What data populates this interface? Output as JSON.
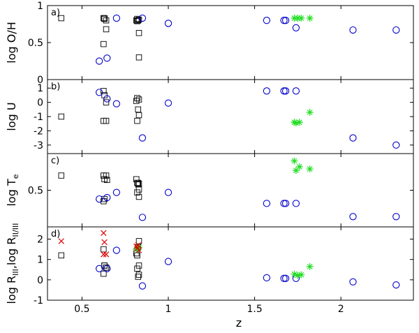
{
  "chart_data": {
    "type": "scatter",
    "xlabel": "z",
    "xlim": [
      0.3,
      2.42
    ],
    "x_ticks": [
      0.5,
      1,
      1.5,
      2
    ],
    "x_tick_labels": [
      "0.5",
      "1",
      "1.5",
      "2"
    ],
    "grid": false,
    "colors": {
      "square": "#000000",
      "circle": "#0000cc",
      "star": "#22dd22",
      "cross": "#dd0000"
    },
    "panels": [
      {
        "label": "a)",
        "ylabel": "log O/H",
        "ylim": [
          0,
          1
        ],
        "y_ticks": [
          0,
          0.5,
          1
        ],
        "y_tick_labels": [
          "0",
          "0.5",
          "1"
        ],
        "series": [
          {
            "marker": "square",
            "color": "#000000",
            "x": [
              0.38,
              0.625,
              0.63,
              0.64,
              0.625,
              0.64,
              0.63,
              0.815,
              0.82,
              0.83,
              0.825,
              0.83,
              0.82,
              0.83
            ],
            "y": [
              0.83,
              0.83,
              0.82,
              0.8,
              0.48,
              0.68,
              0.83,
              0.8,
              0.82,
              0.81,
              0.8,
              0.63,
              0.79,
              0.3
            ]
          },
          {
            "marker": "circle",
            "color": "#0000cc",
            "x": [
              0.6,
              0.645,
              0.7,
              0.85,
              1.0,
              1.57,
              1.67,
              1.68,
              1.74,
              2.07,
              2.32
            ],
            "y": [
              0.25,
              0.29,
              0.83,
              0.83,
              0.76,
              0.8,
              0.8,
              0.8,
              0.7,
              0.67,
              0.67
            ]
          },
          {
            "marker": "star",
            "color": "#22dd22",
            "x": [
              1.73,
              1.75,
              1.77,
              1.82
            ],
            "y": [
              0.83,
              0.83,
              0.83,
              0.83
            ]
          }
        ]
      },
      {
        "label": "b)",
        "ylabel": "log U",
        "ylim": [
          -3.6,
          1.6
        ],
        "y_ticks": [
          -3,
          -2,
          -1,
          0,
          1
        ],
        "y_tick_labels": [
          "-3",
          "-2",
          "-1",
          "0",
          "1"
        ],
        "series": [
          {
            "marker": "square",
            "color": "#000000",
            "x": [
              0.38,
              0.625,
              0.63,
              0.64,
              0.625,
              0.64,
              0.815,
              0.82,
              0.83,
              0.825,
              0.83,
              0.82
            ],
            "y": [
              -1.0,
              0.8,
              0.5,
              0.0,
              -1.3,
              -1.3,
              0.1,
              0.3,
              0.2,
              -0.5,
              -0.9,
              -1.3
            ]
          },
          {
            "marker": "circle",
            "color": "#0000cc",
            "x": [
              0.6,
              0.645,
              0.7,
              0.85,
              1.0,
              1.57,
              1.67,
              1.68,
              1.74,
              2.07,
              2.32
            ],
            "y": [
              0.7,
              0.25,
              -0.1,
              -2.5,
              -0.05,
              0.8,
              0.8,
              0.8,
              0.8,
              -2.5,
              -3.0
            ]
          },
          {
            "marker": "star",
            "color": "#22dd22",
            "x": [
              1.73,
              1.74,
              1.76,
              1.82
            ],
            "y": [
              -1.4,
              -1.45,
              -1.4,
              -0.7
            ]
          }
        ]
      },
      {
        "label": "c)",
        "ylabel": "log T",
        "ylabel_sub": "e",
        "ylim": [
          0,
          1
        ],
        "y_ticks": [
          0.5
        ],
        "y_tick_labels": [
          "0.5"
        ],
        "series": [
          {
            "marker": "square",
            "color": "#000000",
            "x": [
              0.38,
              0.625,
              0.64,
              0.63,
              0.645,
              0.625,
              0.63,
              0.815,
              0.82,
              0.83,
              0.825,
              0.83,
              0.82,
              0.83,
              0.825
            ],
            "y": [
              0.7,
              0.7,
              0.7,
              0.65,
              0.64,
              0.35,
              0.38,
              0.65,
              0.6,
              0.59,
              0.6,
              0.51,
              0.47,
              0.41,
              0.58
            ]
          },
          {
            "marker": "circle",
            "color": "#0000cc",
            "x": [
              0.6,
              0.645,
              0.7,
              0.85,
              1.0,
              1.57,
              1.67,
              1.68,
              1.74,
              2.07,
              2.32
            ],
            "y": [
              0.38,
              0.4,
              0.47,
              0.13,
              0.47,
              0.32,
              0.32,
              0.32,
              0.32,
              0.14,
              0.14
            ]
          },
          {
            "marker": "star",
            "color": "#22dd22",
            "x": [
              1.73,
              1.74,
              1.76,
              1.82
            ],
            "y": [
              0.9,
              0.77,
              0.82,
              0.79
            ]
          }
        ]
      },
      {
        "label": "d)",
        "ylabel": "log R",
        "ylabel_sub": "III",
        "ylabel_sep": ",log R",
        "ylabel_sub2": "II/III",
        "ylim": [
          -1,
          2.6
        ],
        "y_ticks": [
          -1,
          0,
          1,
          2
        ],
        "y_tick_labels": [
          "-1",
          "0",
          "1",
          "2"
        ],
        "series": [
          {
            "marker": "square",
            "color": "#000000",
            "x": [
              0.38,
              0.625,
              0.63,
              0.64,
              0.625,
              0.64,
              0.63,
              0.815,
              0.82,
              0.83,
              0.825,
              0.83,
              0.82,
              0.83,
              0.825
            ],
            "y": [
              1.2,
              1.5,
              0.7,
              0.6,
              0.3,
              0.6,
              0.7,
              1.3,
              1.2,
              1.9,
              1.6,
              0.7,
              0.55,
              0.25,
              0.15
            ]
          },
          {
            "marker": "circle",
            "color": "#0000cc",
            "x": [
              0.6,
              0.645,
              0.7,
              0.85,
              1.0,
              1.57,
              1.67,
              1.68,
              1.74,
              2.07,
              2.32
            ],
            "y": [
              0.55,
              0.55,
              1.45,
              -0.3,
              0.9,
              0.1,
              0.07,
              0.07,
              0.07,
              -0.1,
              -0.25
            ]
          },
          {
            "marker": "star",
            "color": "#22dd22",
            "x": [
              1.73,
              1.75,
              1.77,
              1.82,
              0.815,
              0.825,
              0.83
            ],
            "y": [
              0.28,
              0.22,
              0.25,
              0.65,
              1.5,
              1.55,
              1.6
            ]
          },
          {
            "marker": "cross",
            "color": "#dd0000",
            "x": [
              0.38,
              0.625,
              0.63,
              0.64,
              0.625,
              0.815,
              0.82,
              0.83,
              0.825
            ],
            "y": [
              1.9,
              2.3,
              1.85,
              1.25,
              1.25,
              1.65,
              1.55,
              1.45,
              1.7
            ]
          }
        ]
      }
    ]
  }
}
